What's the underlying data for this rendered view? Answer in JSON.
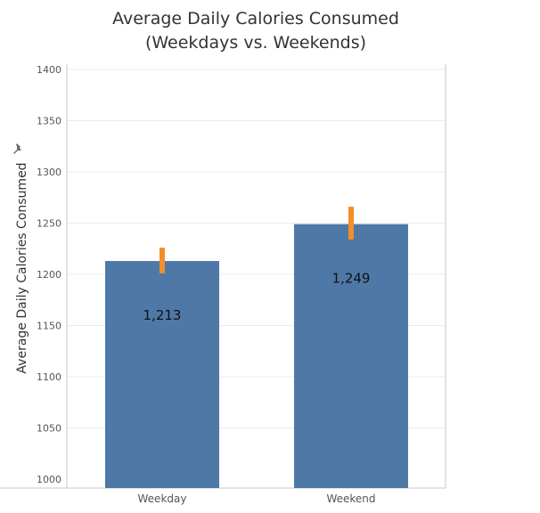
{
  "chart_data": {
    "type": "bar",
    "title_line1": "Average Daily Calories Consumed",
    "title_line2": "(Weekdays vs. Weekends)",
    "xlabel": "",
    "ylabel": "Average Daily Calories Consumed",
    "categories": [
      "Weekday",
      "Weekend"
    ],
    "values": [
      1213,
      1249
    ],
    "value_labels": [
      "1,213",
      "1,249"
    ],
    "error_bars": [
      {
        "low": 1201,
        "high": 1226
      },
      {
        "low": 1234,
        "high": 1266
      }
    ],
    "ylim": [
      1000,
      1400
    ],
    "yticks": [
      1000,
      1050,
      1100,
      1150,
      1200,
      1250,
      1300,
      1350,
      1400
    ],
    "grid": true,
    "colors": {
      "bar": "#4e79a7",
      "error": "#f28e2b",
      "grid": "#ececec",
      "axis": "#c8c8c8",
      "text": "#333333"
    }
  },
  "icons": {
    "pin": "pin-icon"
  }
}
